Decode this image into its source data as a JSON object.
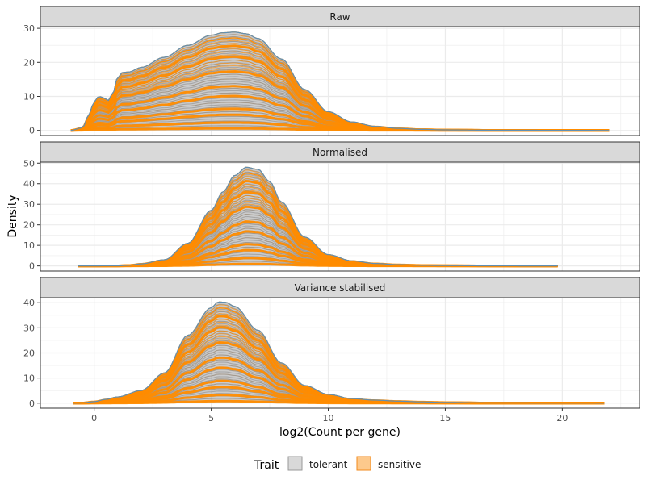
{
  "chart_data": {
    "type": "area",
    "xlabel": "log2(Count per gene)",
    "ylabel": "Density",
    "x_ticks": [
      0,
      5,
      10,
      15,
      20
    ],
    "xlim": [
      -2.3,
      23.3
    ],
    "grid": true,
    "legend": {
      "title": "Trait",
      "position": "bottom",
      "entries": [
        {
          "label": "tolerant",
          "fill": "#d9d9d9",
          "stroke": "#999999"
        },
        {
          "label": "sensitive",
          "fill": "#fdc98c",
          "stroke": "#f28a1c"
        }
      ]
    },
    "colors": {
      "tolerant_band": "#a0a0a0",
      "sensitive_line": "#ff8c00",
      "top_outline": "#5f8fb4",
      "strip_bg": "#d9d9d9",
      "grid": "#ebebeb",
      "accent_outline": "#9a8060"
    },
    "panels": [
      {
        "title": "Raw",
        "ylim": [
          -1.5,
          30.5
        ],
        "y_ticks": [
          0,
          10,
          20,
          30
        ],
        "x_range": [
          -1,
          22
        ],
        "profile": [
          [
            -1.0,
            0
          ],
          [
            -0.5,
            0.8
          ],
          [
            -0.2,
            5
          ],
          [
            0.0,
            8.5
          ],
          [
            0.2,
            10
          ],
          [
            0.4,
            9.6
          ],
          [
            0.6,
            8.8
          ],
          [
            0.8,
            11
          ],
          [
            1.0,
            15.5
          ],
          [
            1.2,
            17
          ],
          [
            1.5,
            17.2
          ],
          [
            2,
            18.5
          ],
          [
            3,
            21.5
          ],
          [
            4,
            25
          ],
          [
            5,
            28
          ],
          [
            5.5,
            28.7
          ],
          [
            6,
            28.9
          ],
          [
            6.5,
            28.4
          ],
          [
            7,
            27
          ],
          [
            8,
            21
          ],
          [
            9,
            12
          ],
          [
            10,
            5.5
          ],
          [
            11,
            2.5
          ],
          [
            12,
            1.2
          ],
          [
            13,
            0.6
          ],
          [
            14,
            0.3
          ],
          [
            15,
            0.15
          ],
          [
            17,
            0.05
          ],
          [
            20,
            0.02
          ],
          [
            22,
            0
          ]
        ],
        "sensitive_fraction": [
          0.02,
          0.08,
          0.16,
          0.22,
          0.35,
          0.45,
          0.6,
          0.75,
          0.86,
          0.94,
          1.0
        ]
      },
      {
        "title": "Normalised",
        "ylim": [
          -2.5,
          50.5
        ],
        "y_ticks": [
          0,
          10,
          20,
          30,
          40,
          50
        ],
        "x_range": [
          -0.7,
          19.8
        ],
        "profile": [
          [
            -0.7,
            0
          ],
          [
            1,
            0.05
          ],
          [
            1.5,
            0.3
          ],
          [
            2,
            1
          ],
          [
            3,
            3
          ],
          [
            4,
            11
          ],
          [
            5,
            27
          ],
          [
            5.5,
            36
          ],
          [
            6,
            44
          ],
          [
            6.5,
            48
          ],
          [
            7,
            47
          ],
          [
            7.5,
            41
          ],
          [
            8,
            31
          ],
          [
            9,
            14
          ],
          [
            10,
            5.5
          ],
          [
            11,
            2.5
          ],
          [
            12,
            1.2
          ],
          [
            13,
            0.6
          ],
          [
            14,
            0.3
          ],
          [
            15,
            0.15
          ],
          [
            17,
            0.05
          ],
          [
            19.8,
            0
          ]
        ],
        "sensitive_fraction": [
          0.02,
          0.08,
          0.16,
          0.22,
          0.35,
          0.45,
          0.6,
          0.75,
          0.86,
          0.94,
          1.0
        ]
      },
      {
        "title": "Variance stabilised",
        "ylim": [
          -2,
          42
        ],
        "y_ticks": [
          0,
          10,
          20,
          30,
          40
        ],
        "x_range": [
          -0.9,
          21.8
        ],
        "profile": [
          [
            -0.9,
            0
          ],
          [
            -0.5,
            0.1
          ],
          [
            0,
            0.6
          ],
          [
            0.5,
            1.5
          ],
          [
            1,
            2.5
          ],
          [
            2,
            5
          ],
          [
            3,
            12
          ],
          [
            4,
            27
          ],
          [
            5,
            38
          ],
          [
            5.3,
            40.3
          ],
          [
            5.6,
            40.2
          ],
          [
            6,
            38.5
          ],
          [
            7,
            29
          ],
          [
            8,
            16
          ],
          [
            9,
            7
          ],
          [
            10,
            3.5
          ],
          [
            11,
            1.8
          ],
          [
            12,
            1.2
          ],
          [
            13,
            0.8
          ],
          [
            14,
            0.5
          ],
          [
            15,
            0.3
          ],
          [
            16.8,
            0.1
          ],
          [
            20,
            0.05
          ],
          [
            21.8,
            0
          ]
        ],
        "sensitive_fraction": [
          0.02,
          0.08,
          0.16,
          0.22,
          0.35,
          0.45,
          0.6,
          0.75,
          0.86,
          0.94,
          1.0
        ]
      }
    ]
  }
}
